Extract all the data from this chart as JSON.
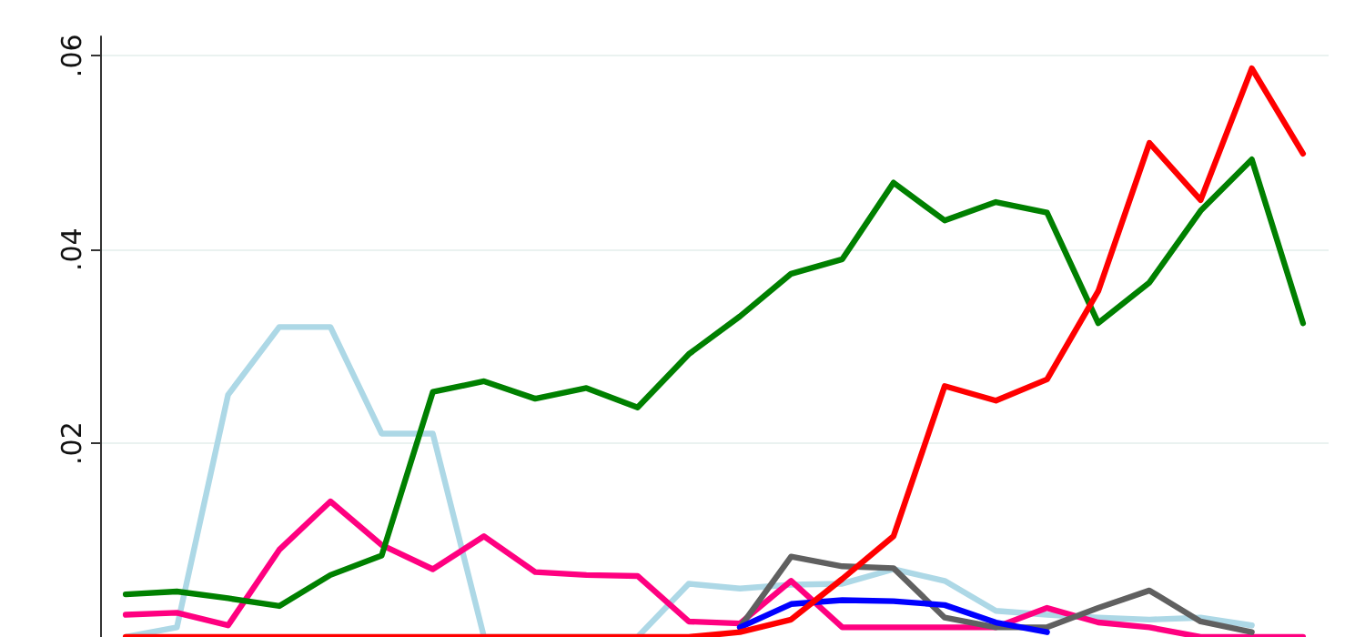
{
  "chart_data": {
    "type": "line",
    "categories": [
      null,
      null,
      null,
      null,
      null,
      null,
      null,
      null,
      null,
      null,
      null,
      null,
      null,
      null,
      null,
      null,
      null,
      null,
      null,
      null,
      null,
      null,
      null,
      null
    ],
    "series": [
      {
        "color": "#add8e6",
        "values": [
          0,
          0.001,
          0.025,
          0.032,
          0.032,
          0.021,
          0.021,
          0,
          0,
          0,
          0,
          0.0055,
          0.005,
          0.0054,
          0.0055,
          0.007,
          0.0058,
          0.0027,
          0.0023,
          0.002,
          0.0018,
          0.002,
          0.0012,
          null
        ]
      },
      {
        "color": "#ff0080",
        "values": [
          0.0023,
          0.0025,
          0.0012,
          0.009,
          0.014,
          0.0095,
          0.007,
          0.0104,
          0.0067,
          0.0064,
          0.0063,
          0.0016,
          0.0014,
          0.0058,
          0.001,
          0.001,
          0.001,
          0.001,
          0.003,
          0.0015,
          0.001,
          0,
          0,
          0
        ]
      },
      {
        "color": "#606060",
        "values": [
          null,
          null,
          null,
          null,
          null,
          null,
          null,
          null,
          null,
          null,
          null,
          null,
          0.001,
          0.0083,
          0.0073,
          0.0071,
          0.002,
          0.001,
          0.001,
          0.003,
          0.0048,
          0.0016,
          0.0005,
          null
        ]
      },
      {
        "color": "#0000ff",
        "values": [
          null,
          null,
          null,
          null,
          null,
          null,
          null,
          null,
          null,
          null,
          null,
          null,
          0.001,
          0.0034,
          0.0038,
          0.0037,
          0.0033,
          0.0015,
          0.0005,
          null,
          null,
          null,
          null,
          null
        ]
      },
      {
        "color": "#008000",
        "values": [
          0.0044,
          0.0047,
          0.004,
          0.0032,
          0.0064,
          0.0084,
          0.0253,
          0.0264,
          0.0246,
          0.0257,
          0.0237,
          0.0292,
          0.0331,
          0.0375,
          0.039,
          0.0469,
          0.043,
          0.0449,
          0.0438,
          0.0324,
          0.0366,
          0.044,
          0.0493,
          0.0324
        ]
      },
      {
        "color": "#ff0000",
        "values": [
          0,
          0,
          0,
          0,
          0,
          0,
          0,
          0,
          0,
          0,
          0,
          0,
          0.0005,
          0.0018,
          0.006,
          0.0104,
          0.0259,
          0.0244,
          0.0266,
          0.0357,
          0.051,
          0.0451,
          0.0587,
          0.0499
        ]
      }
    ],
    "ylim": [
      0,
      0.062
    ],
    "yticks": [
      {
        "value": 0.02,
        "label": ".02"
      },
      {
        "value": 0.04,
        "label": ".04"
      },
      {
        "value": 0.06,
        "label": ".06"
      }
    ],
    "grid": "y",
    "tick_labels": "y",
    "marker": "none",
    "line_style": "solid"
  }
}
